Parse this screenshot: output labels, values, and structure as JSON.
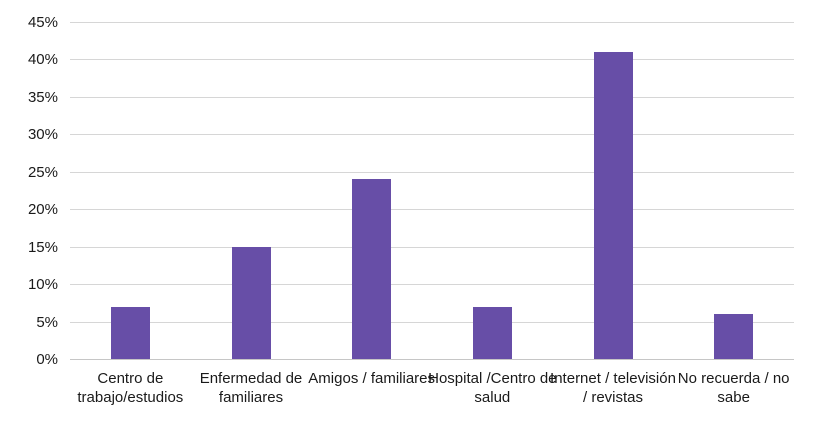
{
  "chart_data": {
    "type": "bar",
    "title": "",
    "xlabel": "",
    "ylabel": "",
    "categories": [
      "Centro de trabajo/estudios",
      "Enfermedad de familiares",
      "Amigos / familiares",
      "Hospital /Centro de salud",
      "Internet / televisión / revistas",
      "No recuerda / no sabe"
    ],
    "values": [
      7,
      15,
      24,
      7,
      41,
      6
    ],
    "value_unit": "%",
    "ylim": [
      0,
      45
    ],
    "y_tick_step": 5,
    "y_tick_labels": [
      "0%",
      "5%",
      "10%",
      "15%",
      "20%",
      "25%",
      "30%",
      "35%",
      "40%",
      "45%"
    ],
    "grid": "horizontal-only",
    "legend": "none",
    "colors": {
      "bar": "#674EA7",
      "gridline": "#d6d6d6",
      "axis_line": "#c6c6c6",
      "text": "#1a1a1a",
      "background": "#ffffff"
    }
  }
}
